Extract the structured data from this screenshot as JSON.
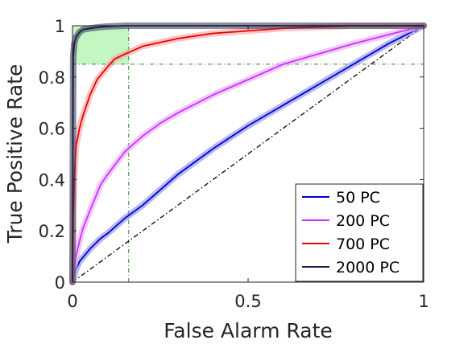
{
  "chart_data": {
    "type": "line",
    "xlabel": "False Alarm Rate",
    "ylabel": "True Positive Rate",
    "xlim": [
      0,
      1
    ],
    "ylim": [
      0,
      1
    ],
    "x_ticks": [
      "0",
      "0.5",
      "1"
    ],
    "y_ticks": [
      "0",
      "0.2",
      "0.4",
      "0.6",
      "0.8",
      "1"
    ],
    "grid": false,
    "legend_position": "bottom-right",
    "operating_point": {
      "x": 0.16,
      "y": 0.85,
      "region_color": "#90ee90"
    },
    "chance_line": {
      "x": [
        0,
        1
      ],
      "y": [
        0,
        1
      ],
      "color": "#000000",
      "style": "dash-dot"
    },
    "series": [
      {
        "name": "50 PC",
        "color": "#0000cc",
        "band_color": "#8888ee",
        "x": [
          0,
          0.01,
          0.02,
          0.05,
          0.08,
          0.1,
          0.15,
          0.2,
          0.25,
          0.3,
          0.4,
          0.5,
          0.6,
          0.7,
          0.8,
          0.9,
          1.0
        ],
        "y": [
          0,
          0.05,
          0.08,
          0.13,
          0.17,
          0.19,
          0.25,
          0.3,
          0.36,
          0.42,
          0.52,
          0.61,
          0.69,
          0.77,
          0.85,
          0.93,
          1.0
        ]
      },
      {
        "name": "200 PC",
        "color": "#cc33ff",
        "band_color": "#e8a8ff",
        "x": [
          0,
          0.005,
          0.01,
          0.02,
          0.03,
          0.05,
          0.08,
          0.1,
          0.15,
          0.2,
          0.25,
          0.3,
          0.4,
          0.5,
          0.6,
          0.7,
          0.8,
          0.9,
          1.0
        ],
        "y": [
          0,
          0.06,
          0.1,
          0.16,
          0.21,
          0.28,
          0.38,
          0.42,
          0.51,
          0.57,
          0.62,
          0.66,
          0.73,
          0.79,
          0.85,
          0.89,
          0.93,
          0.965,
          1.0
        ]
      },
      {
        "name": "700 PC",
        "color": "#ee0000",
        "band_color": "#f4a0a0",
        "x": [
          0,
          0.002,
          0.005,
          0.01,
          0.02,
          0.03,
          0.05,
          0.07,
          0.1,
          0.12,
          0.15,
          0.2,
          0.3,
          0.4,
          0.5,
          0.6,
          0.7,
          0.8,
          0.9,
          1.0
        ],
        "y": [
          0,
          0.25,
          0.4,
          0.53,
          0.6,
          0.65,
          0.73,
          0.79,
          0.84,
          0.87,
          0.89,
          0.92,
          0.95,
          0.97,
          0.98,
          0.99,
          0.995,
          1.0,
          1.0,
          1.0
        ]
      },
      {
        "name": "2000 PC",
        "color": "#1a1a4d",
        "band_color": "#404060",
        "x": [
          0,
          0.002,
          0.005,
          0.01,
          0.02,
          0.03,
          0.05,
          0.08,
          0.1,
          0.15,
          0.2,
          0.3,
          0.5,
          0.7,
          1.0
        ],
        "y": [
          0,
          0.88,
          0.93,
          0.955,
          0.975,
          0.985,
          0.99,
          0.995,
          0.997,
          1.0,
          1.0,
          1.0,
          1.0,
          1.0,
          1.0
        ]
      }
    ]
  }
}
